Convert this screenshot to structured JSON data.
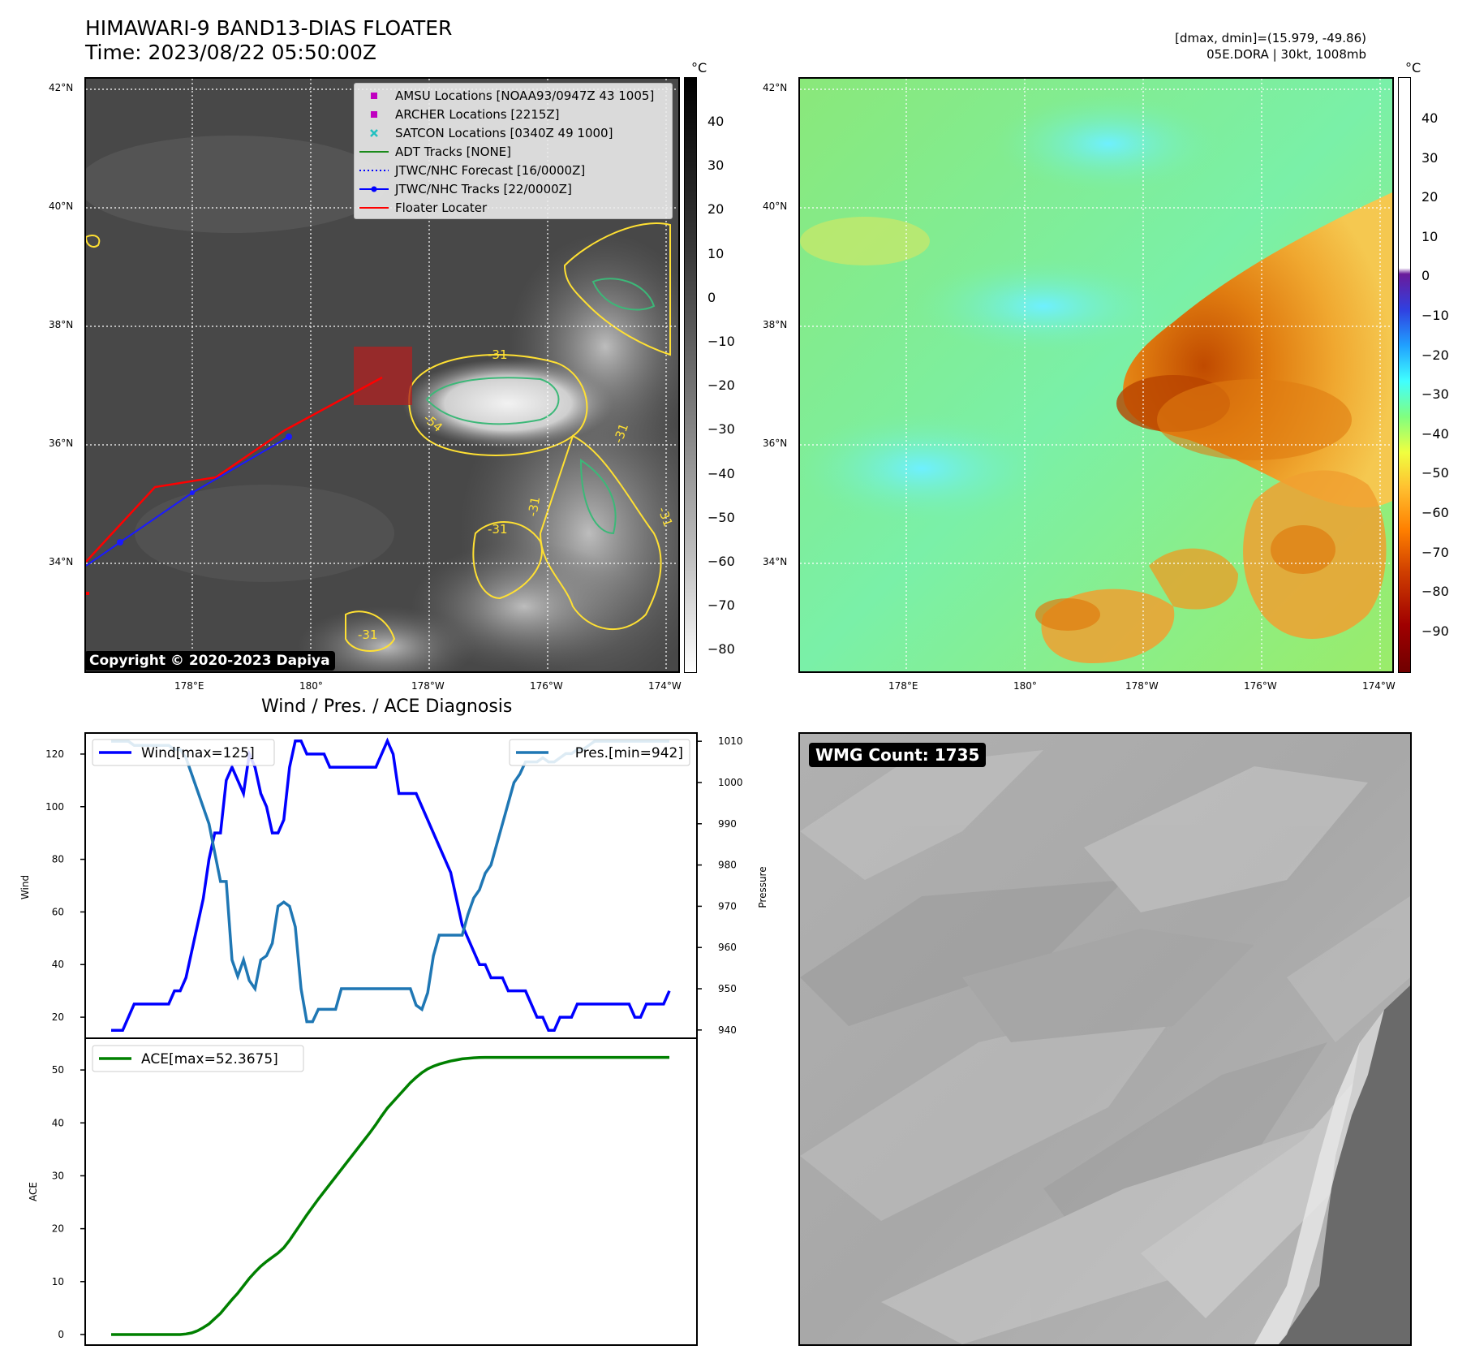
{
  "header": {
    "title": "HIMAWARI-9 BAND13-DIAS FLOATER",
    "time": "Time: 2023/08/22 05:50:00Z",
    "stats": "[dmax, dmin]=(15.979, -49.86)",
    "storm": "05E.DORA | 30kt, 1008mb"
  },
  "map": {
    "lat_labels": [
      "42°N",
      "40°N",
      "38°N",
      "36°N",
      "34°N"
    ],
    "lon_labels": [
      "178°E",
      "180°",
      "178°W",
      "176°W",
      "174°W"
    ],
    "copyright": "Copyright © 2020-2023 Dapiya",
    "contour_labels": [
      "-31",
      "-54",
      "-31",
      "-31",
      "-31",
      "-31",
      "-31"
    ],
    "legend": [
      {
        "label": "AMSU Locations [NOAA93/0947Z 43 1005]",
        "symbol": "square",
        "color": "#c000c0"
      },
      {
        "label": "ARCHER Locations [2215Z]",
        "symbol": "square",
        "color": "#c000c0"
      },
      {
        "label": "SATCON Locations [0340Z 49 1000]",
        "symbol": "x",
        "color": "#20c0c0"
      },
      {
        "label": "ADT Tracks [NONE]",
        "symbol": "line",
        "color": "#1a8a1a"
      },
      {
        "label": "JTWC/NHC Forecast [16/0000Z]",
        "symbol": "dotted",
        "color": "#0000ff"
      },
      {
        "label": "JTWC/NHC Tracks [22/0000Z]",
        "symbol": "line-dot",
        "color": "#0000ff"
      },
      {
        "label": "Floater Locater",
        "symbol": "line",
        "color": "#ff0000"
      }
    ],
    "colorbar_unit": "°C",
    "gray_colorbar_ticks": [
      "40",
      "30",
      "20",
      "10",
      "0",
      "−10",
      "−20",
      "−30",
      "−40",
      "−50",
      "−60",
      "−70",
      "−80"
    ],
    "color_colorbar_ticks": [
      "40",
      "30",
      "20",
      "10",
      "0",
      "−10",
      "−20",
      "−30",
      "−40",
      "−50",
      "−60",
      "−70",
      "−80",
      "−90"
    ],
    "colors": {
      "contour_yellow": "#ffe033",
      "contour_green": "#3cb878",
      "floater_red": "#e00000",
      "track_blue": "#1a1aff"
    }
  },
  "wmg": {
    "label": "WMG Count: 1735"
  },
  "chart_data": [
    {
      "type": "line",
      "title": "Wind / Pres. / ACE Diagnosis",
      "ylabel": "Wind",
      "y2label": "Pressure",
      "ylim": [
        12,
        128
      ],
      "y2lim": [
        938,
        1012
      ],
      "yticks": [
        "20",
        "40",
        "60",
        "80",
        "100",
        "120"
      ],
      "y2ticks": [
        "940",
        "950",
        "960",
        "970",
        "980",
        "990",
        "1000",
        "1010"
      ],
      "series": [
        {
          "name": "Wind[max=125]",
          "axis": "left",
          "color": "#0000ff",
          "values": [
            15,
            15,
            15,
            20,
            25,
            25,
            25,
            25,
            25,
            25,
            25,
            30,
            30,
            35,
            45,
            55,
            65,
            80,
            90,
            90,
            110,
            115,
            110,
            105,
            120,
            115,
            105,
            100,
            90,
            90,
            95,
            115,
            125,
            125,
            120,
            120,
            120,
            120,
            115,
            115,
            115,
            115,
            115,
            115,
            115,
            115,
            115,
            120,
            125,
            120,
            105,
            105,
            105,
            105,
            100,
            95,
            90,
            85,
            80,
            75,
            65,
            55,
            50,
            45,
            40,
            40,
            35,
            35,
            35,
            30,
            30,
            30,
            30,
            25,
            20,
            20,
            15,
            15,
            20,
            20,
            20,
            25,
            25,
            25,
            25,
            25,
            25,
            25,
            25,
            25,
            25,
            20,
            20,
            25,
            25,
            25,
            25,
            30
          ]
        },
        {
          "name": "Pres.[min=942]",
          "axis": "right",
          "color": "#1f77b4",
          "values": [
            1010,
            1010,
            1010,
            1010,
            1009,
            1009,
            1009,
            1009,
            1009,
            1009,
            1009,
            1008,
            1008,
            1006,
            1002,
            998,
            994,
            990,
            983,
            976,
            976,
            957,
            953,
            957,
            952,
            950,
            957,
            958,
            961,
            970,
            971,
            970,
            965,
            950,
            942,
            942,
            945,
            945,
            945,
            945,
            950,
            950,
            950,
            950,
            950,
            950,
            950,
            950,
            950,
            950,
            950,
            950,
            950,
            946,
            945,
            949,
            958,
            963,
            963,
            963,
            963,
            963,
            968,
            972,
            974,
            978,
            980,
            985,
            990,
            995,
            1000,
            1002,
            1005,
            1005,
            1005,
            1006,
            1005,
            1005,
            1006,
            1007,
            1007,
            1008,
            1008,
            1009,
            1010,
            1010,
            1010,
            1010,
            1010,
            1010,
            1010,
            1010,
            1010,
            1010,
            1010,
            1010,
            1010,
            1010
          ]
        }
      ]
    },
    {
      "type": "line",
      "ylabel": "ACE",
      "ylim": [
        -2,
        56
      ],
      "yticks": [
        "0",
        "10",
        "20",
        "30",
        "40",
        "50"
      ],
      "series": [
        {
          "name": "ACE[max=52.3675]",
          "color": "#008000",
          "values": [
            0,
            0,
            0,
            0,
            0,
            0,
            0,
            0,
            0,
            0,
            0,
            0,
            0,
            0.1,
            0.3,
            0.7,
            1.3,
            2,
            3,
            4,
            5.3,
            6.6,
            7.8,
            9.2,
            10.6,
            11.8,
            12.9,
            13.8,
            14.6,
            15.4,
            16.4,
            17.8,
            19.4,
            21,
            22.6,
            24.1,
            25.6,
            27,
            28.4,
            29.8,
            31.2,
            32.6,
            34,
            35.4,
            36.8,
            38.2,
            39.7,
            41.3,
            42.8,
            44,
            45.2,
            46.4,
            47.6,
            48.6,
            49.5,
            50.2,
            50.7,
            51.1,
            51.4,
            51.7,
            51.9,
            52.1,
            52.2,
            52.3,
            52.35,
            52.3675,
            52.3675,
            52.3675,
            52.3675,
            52.3675,
            52.3675,
            52.3675,
            52.3675,
            52.3675,
            52.3675,
            52.3675,
            52.3675,
            52.3675,
            52.3675,
            52.3675,
            52.3675,
            52.3675,
            52.3675,
            52.3675,
            52.3675,
            52.3675,
            52.3675,
            52.3675,
            52.3675,
            52.3675,
            52.3675,
            52.3675,
            52.3675,
            52.3675,
            52.3675,
            52.3675,
            52.3675,
            52.3675
          ]
        }
      ]
    }
  ]
}
